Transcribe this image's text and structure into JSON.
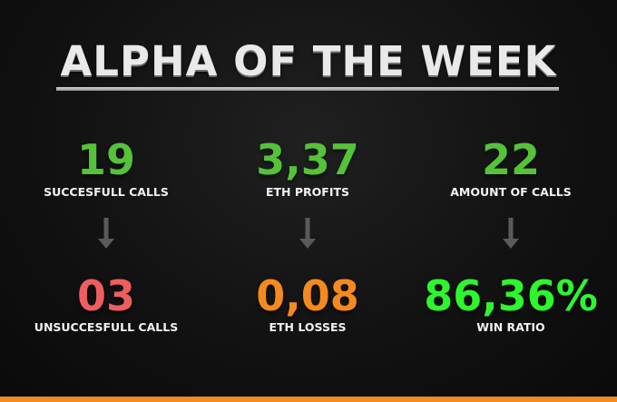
{
  "title": "ALPHA OF THE WEEK",
  "colors": {
    "green": "#55c23a",
    "red": "#ee5e60",
    "orange": "#f48a1f",
    "bright_green": "#2ef52e",
    "arrow": "#5a5a5a",
    "accent_bar": "#f28b22"
  },
  "stats": [
    {
      "top_value": "19",
      "top_label": "SUCCESFULL CALLS",
      "bottom_value": "03",
      "bottom_label": "UNSUCCESFULL CALLS",
      "arrow_icon": "arrow-down-icon"
    },
    {
      "top_value": "3,37",
      "top_label": "ETH PROFITS",
      "bottom_value": "0,08",
      "bottom_label": "ETH LOSSES",
      "arrow_icon": "arrow-down-icon"
    },
    {
      "top_value": "22",
      "top_label": "AMOUNT OF CALLS",
      "bottom_value": "86,36%",
      "bottom_label": "WIN RATIO",
      "arrow_icon": "arrow-down-icon"
    }
  ]
}
